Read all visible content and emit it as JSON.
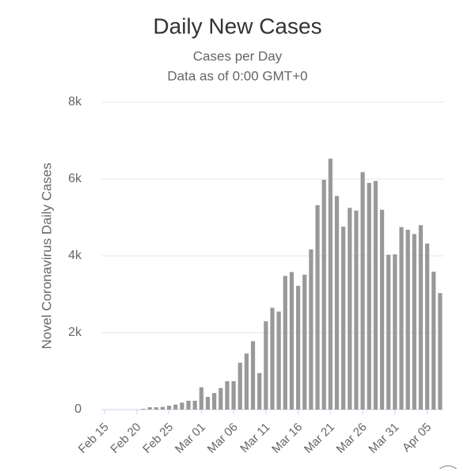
{
  "chart_data": {
    "type": "bar",
    "title": "Daily New Cases",
    "subtitle": [
      "Cases per Day",
      "Data as of 0:00 GMT+0"
    ],
    "y_label": "Novel Coronavirus Daily Cases",
    "categories": [
      "Feb 15",
      null,
      null,
      null,
      null,
      "Feb 20",
      null,
      null,
      null,
      null,
      "Feb 25",
      null,
      null,
      null,
      null,
      "Mar 01",
      null,
      null,
      null,
      null,
      "Mar 06",
      null,
      null,
      null,
      null,
      "Mar 11",
      null,
      null,
      null,
      null,
      "Mar 16",
      null,
      null,
      null,
      null,
      "Mar 21",
      null,
      null,
      null,
      null,
      "Mar 26",
      null,
      null,
      null,
      null,
      "Mar 31",
      null,
      null,
      null,
      null,
      "Apr 05",
      null,
      null
    ],
    "values": [
      0,
      0,
      0,
      0,
      0,
      0,
      20,
      60,
      60,
      70,
      100,
      130,
      180,
      230,
      230,
      580,
      330,
      430,
      560,
      740,
      740,
      1220,
      1460,
      1780,
      950,
      2300,
      2650,
      2550,
      3480,
      3580,
      3220,
      3510,
      4170,
      5320,
      5980,
      6530,
      5560,
      4760,
      5250,
      5180,
      6180,
      5900,
      5950,
      5200,
      4030,
      4040,
      4750,
      4680,
      4570,
      4800,
      4320,
      3590,
      3030
    ],
    "color": "#999999",
    "ylim": [
      0,
      8000
    ],
    "yticks": [
      0,
      {
        "value": 2000,
        "label": "2k"
      },
      {
        "value": 4000,
        "label": "4k"
      },
      {
        "value": 6000,
        "label": "6k"
      },
      {
        "value": 8000,
        "label": "8k"
      }
    ],
    "grid": true
  }
}
